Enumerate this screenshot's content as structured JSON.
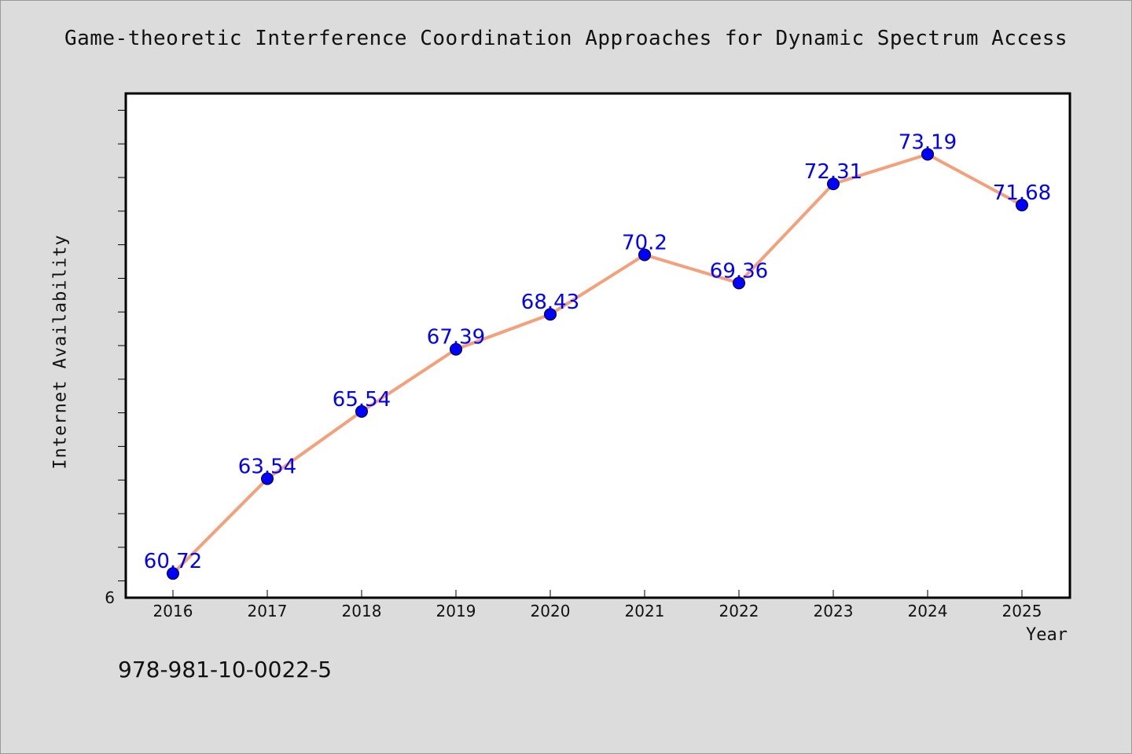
{
  "chart_data": {
    "type": "line",
    "title": "Game-theoretic Interference Coordination Approaches for Dynamic Spectrum Access",
    "xlabel": "Year",
    "ylabel": "Internet Availability",
    "categories": [
      "2016",
      "2017",
      "2018",
      "2019",
      "2020",
      "2021",
      "2022",
      "2023",
      "2024",
      "2025"
    ],
    "series": [
      {
        "values": [
          60.72,
          63.54,
          65.54,
          67.39,
          68.43,
          70.2,
          69.36,
          72.31,
          73.19,
          71.68
        ],
        "labels": [
          "60.72",
          "63.54",
          "65.54",
          "67.39",
          "68.43",
          "70.2",
          "69.36",
          "72.31",
          "73.19",
          "71.68"
        ],
        "line_color": "#f4a07a",
        "marker_color": "#0000ff"
      }
    ],
    "ylim": [
      60,
      75
    ],
    "y_tick_label": "6",
    "grid": false,
    "legend": "none"
  },
  "footnote": "978-981-10-0022-5"
}
